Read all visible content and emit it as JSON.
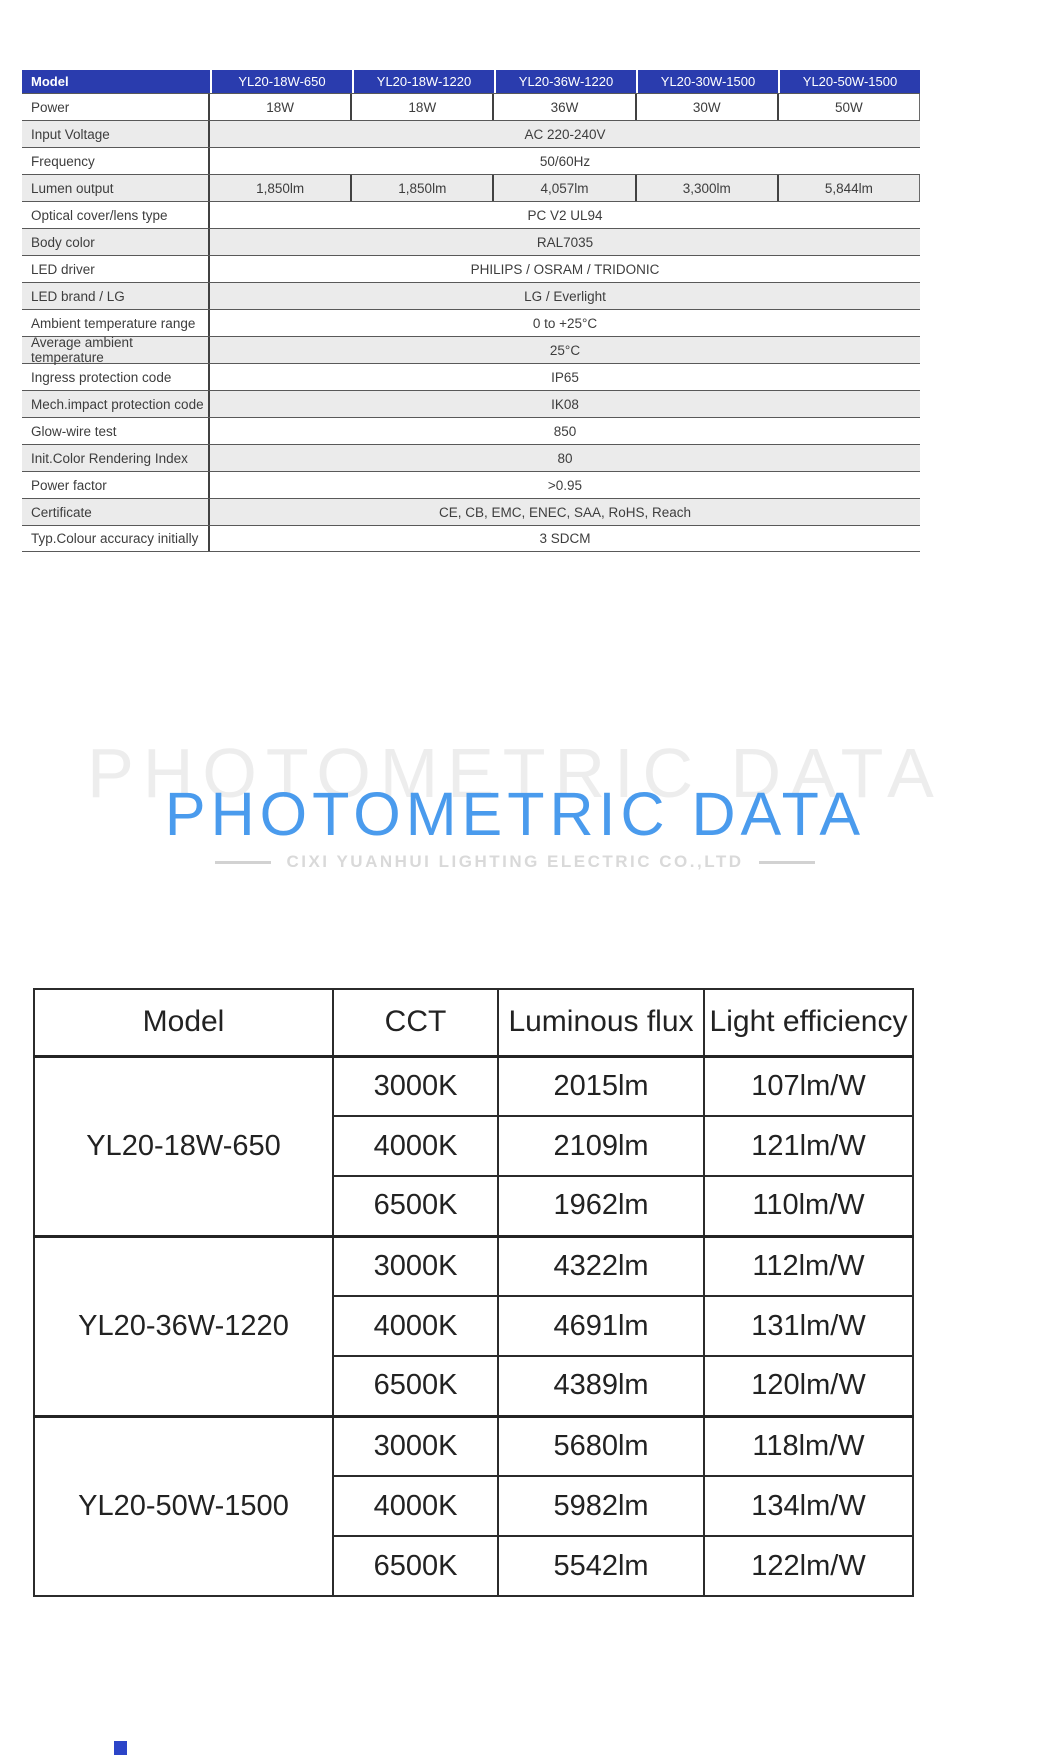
{
  "spec_table": {
    "header": {
      "label": "Model",
      "models": [
        "YL20-18W-650",
        "YL20-18W-1220",
        "YL20-36W-1220",
        "YL20-30W-1500",
        "YL20-50W-1500"
      ]
    },
    "rows": [
      {
        "label": "Power",
        "type": "per",
        "values": [
          "18W",
          "18W",
          "36W",
          "30W",
          "50W"
        ],
        "shaded": false
      },
      {
        "label": "Input Voltage",
        "type": "merged",
        "value": "AC 220-240V",
        "shaded": true
      },
      {
        "label": "Frequency",
        "type": "merged",
        "value": "50/60Hz",
        "shaded": false
      },
      {
        "label": "Lumen output",
        "type": "per",
        "values": [
          "1,850lm",
          "1,850lm",
          "4,057lm",
          "3,300lm",
          "5,844lm"
        ],
        "shaded": true
      },
      {
        "label": "Optical cover/lens type",
        "type": "merged",
        "value": "PC V2 UL94",
        "shaded": false
      },
      {
        "label": "Body color",
        "type": "merged",
        "value": "RAL7035",
        "shaded": true
      },
      {
        "label": "LED driver",
        "type": "merged",
        "value": "PHILIPS / OSRAM / TRIDONIC",
        "shaded": false
      },
      {
        "label": "LED brand / LG",
        "type": "merged",
        "value": "LG / Everlight",
        "shaded": true
      },
      {
        "label": "Ambient temperature range",
        "type": "merged",
        "value": "0 to +25°C",
        "shaded": false
      },
      {
        "label": "Average ambient temperature",
        "type": "merged",
        "value": "25°C",
        "shaded": true
      },
      {
        "label": "Ingress protection code",
        "type": "merged",
        "value": "IP65",
        "shaded": false
      },
      {
        "label": "Mech.impact protection code",
        "type": "merged",
        "value": "IK08",
        "shaded": true
      },
      {
        "label": "Glow-wire test",
        "type": "merged",
        "value": "850",
        "shaded": false
      },
      {
        "label": "Init.Color Rendering Index",
        "type": "merged",
        "value": "80",
        "shaded": true
      },
      {
        "label": "Power factor",
        "type": "merged",
        "value": ">0.95",
        "shaded": false
      },
      {
        "label": "Certificate",
        "type": "merged",
        "value": "CE, CB, EMC, ENEC, SAA, RoHS, Reach",
        "shaded": true
      },
      {
        "label": "Typ.Colour accuracy initially",
        "type": "merged",
        "value": "3 SDCM",
        "shaded": false
      }
    ]
  },
  "section": {
    "watermark": "PHOTOMETRIC DATA",
    "title": "PHOTOMETRIC DATA",
    "subtitle": "CIXI YUANHUI LIGHTING ELECTRIC CO.,LTD",
    "accent_color": "#4a9bed",
    "header_color": "#2a3cae"
  },
  "photometric_table": {
    "headers": [
      "Model",
      "CCT",
      "Luminous flux",
      "Light efficiency"
    ],
    "groups": [
      {
        "model": "YL20-18W-650",
        "rows": [
          [
            "3000K",
            "2015lm",
            "107lm/W"
          ],
          [
            "4000K",
            "2109lm",
            "121lm/W"
          ],
          [
            "6500K",
            "1962lm",
            "110lm/W"
          ]
        ]
      },
      {
        "model": "YL20-36W-1220",
        "rows": [
          [
            "3000K",
            "4322lm",
            "112lm/W"
          ],
          [
            "4000K",
            "4691lm",
            "131lm/W"
          ],
          [
            "6500K",
            "4389lm",
            "120lm/W"
          ]
        ]
      },
      {
        "model": "YL20-50W-1500",
        "rows": [
          [
            "3000K",
            "5680lm",
            "118lm/W"
          ],
          [
            "4000K",
            "5982lm",
            "134lm/W"
          ],
          [
            "6500K",
            "5542lm",
            "122lm/W"
          ]
        ]
      }
    ]
  }
}
